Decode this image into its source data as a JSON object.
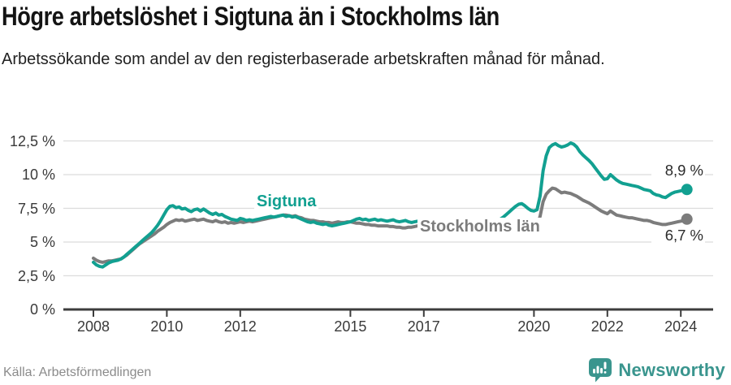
{
  "header": {
    "title": "Högre arbetslöshet i Sigtuna än i Stockholms län",
    "subtitle": "Arbetssökande som andel av den registerbaserade arbetskraften månad för månad."
  },
  "footer": {
    "source": "Källa: Arbetsförmedlingen",
    "brand": "Newsworthy"
  },
  "colors": {
    "sigtuna": "#12A091",
    "stockholm": "#7C7C7C",
    "grid": "#DCDCDC",
    "axis": "#3C3C3C",
    "logo": "#3A958E"
  },
  "chart_data": {
    "type": "line",
    "title": "Högre arbetslöshet i Sigtuna än i Stockholms län",
    "subtitle": "Arbetssökande som andel av den registerbaserade arbetskraften månad för månad.",
    "x_unit": "month",
    "x_start": "2008-01",
    "x_end": "2024-03",
    "x_tick_years": [
      2008,
      2010,
      2012,
      2015,
      2017,
      2020,
      2022,
      2024
    ],
    "y_ticks": [
      {
        "value": 0,
        "label": "0 %"
      },
      {
        "value": 2.5,
        "label": "2,5 %"
      },
      {
        "value": 5,
        "label": "5 %"
      },
      {
        "value": 7.5,
        "label": "7,5 %"
      },
      {
        "value": 10,
        "label": "10 %"
      },
      {
        "value": 12.5,
        "label": "12,5 %"
      }
    ],
    "ylim": [
      0,
      13
    ],
    "grid": true,
    "legend_position": "inline-annotations",
    "series": [
      {
        "name": "Sigtuna",
        "color": "#12A091",
        "end_label": "8,9 %",
        "end_value": 8.9,
        "values": [
          3.5,
          3.3,
          3.2,
          3.15,
          3.3,
          3.45,
          3.55,
          3.6,
          3.65,
          3.75,
          3.9,
          4.1,
          4.3,
          4.5,
          4.7,
          4.9,
          5.1,
          5.3,
          5.5,
          5.7,
          5.95,
          6.25,
          6.6,
          7.0,
          7.4,
          7.65,
          7.7,
          7.55,
          7.6,
          7.45,
          7.5,
          7.35,
          7.25,
          7.4,
          7.45,
          7.3,
          7.45,
          7.3,
          7.15,
          7.05,
          7.15,
          7.0,
          7.05,
          6.9,
          6.8,
          6.7,
          6.65,
          6.6,
          6.75,
          6.7,
          6.6,
          6.65,
          6.6,
          6.65,
          6.7,
          6.75,
          6.8,
          6.85,
          6.9,
          6.85,
          6.9,
          6.95,
          7.0,
          6.9,
          6.95,
          6.85,
          6.9,
          6.8,
          6.7,
          6.6,
          6.5,
          6.45,
          6.5,
          6.4,
          6.35,
          6.3,
          6.35,
          6.25,
          6.2,
          6.25,
          6.3,
          6.35,
          6.4,
          6.45,
          6.5,
          6.6,
          6.7,
          6.75,
          6.65,
          6.7,
          6.6,
          6.65,
          6.7,
          6.6,
          6.65,
          6.6,
          6.55,
          6.6,
          6.65,
          6.55,
          6.5,
          6.55,
          6.6,
          6.5,
          6.45,
          6.5,
          6.55,
          6.5,
          6.45,
          6.5,
          6.55,
          6.45,
          6.4,
          6.45,
          6.5,
          6.45,
          6.4,
          6.45,
          6.5,
          6.45,
          6.4,
          6.45,
          6.5,
          6.45,
          6.5,
          6.45,
          6.5,
          6.55,
          6.5,
          6.55,
          6.6,
          6.6,
          6.65,
          6.7,
          6.85,
          7.05,
          7.25,
          7.45,
          7.65,
          7.8,
          7.85,
          7.7,
          7.5,
          7.35,
          7.3,
          7.4,
          8.4,
          10.3,
          11.4,
          12.0,
          12.2,
          12.3,
          12.15,
          12.05,
          12.1,
          12.2,
          12.35,
          12.25,
          12.05,
          11.7,
          11.45,
          11.25,
          11.05,
          10.8,
          10.5,
          10.2,
          9.9,
          9.65,
          9.7,
          10.0,
          9.8,
          9.6,
          9.45,
          9.35,
          9.3,
          9.25,
          9.2,
          9.15,
          9.1,
          9.0,
          8.9,
          8.85,
          8.8,
          8.6,
          8.5,
          8.45,
          8.35,
          8.3,
          8.45,
          8.6,
          8.7,
          8.75,
          8.8,
          8.85,
          8.9
        ]
      },
      {
        "name": "Stockholms län",
        "color": "#7C7C7C",
        "end_label": "6,7 %",
        "end_value": 6.7,
        "values": [
          3.8,
          3.65,
          3.55,
          3.5,
          3.55,
          3.6,
          3.6,
          3.65,
          3.7,
          3.75,
          3.9,
          4.05,
          4.25,
          4.45,
          4.65,
          4.85,
          5.0,
          5.15,
          5.3,
          5.45,
          5.6,
          5.8,
          5.95,
          6.1,
          6.3,
          6.45,
          6.55,
          6.65,
          6.6,
          6.65,
          6.55,
          6.6,
          6.65,
          6.7,
          6.6,
          6.65,
          6.7,
          6.6,
          6.55,
          6.5,
          6.6,
          6.5,
          6.45,
          6.5,
          6.4,
          6.45,
          6.4,
          6.45,
          6.5,
          6.45,
          6.5,
          6.55,
          6.5,
          6.55,
          6.6,
          6.65,
          6.7,
          6.75,
          6.8,
          6.85,
          6.9,
          6.95,
          7.0,
          7.0,
          6.95,
          6.9,
          6.95,
          6.85,
          6.8,
          6.7,
          6.65,
          6.6,
          6.6,
          6.55,
          6.5,
          6.5,
          6.45,
          6.45,
          6.4,
          6.45,
          6.5,
          6.45,
          6.45,
          6.5,
          6.5,
          6.45,
          6.4,
          6.4,
          6.35,
          6.3,
          6.3,
          6.25,
          6.25,
          6.2,
          6.2,
          6.2,
          6.2,
          6.15,
          6.15,
          6.1,
          6.1,
          6.05,
          6.05,
          6.1,
          6.1,
          6.15,
          6.2,
          6.2,
          6.15,
          6.1,
          6.1,
          6.1,
          6.05,
          6.1,
          6.1,
          6.15,
          6.15,
          6.1,
          6.15,
          6.15,
          6.1,
          6.15,
          6.15,
          6.1,
          6.15,
          6.15,
          6.2,
          6.2,
          6.15,
          6.2,
          6.2,
          6.25,
          6.2,
          6.25,
          6.3,
          6.3,
          6.35,
          6.3,
          6.3,
          6.25,
          6.3,
          6.25,
          6.2,
          6.15,
          6.2,
          6.25,
          6.9,
          8.0,
          8.55,
          8.8,
          9.0,
          8.95,
          8.8,
          8.65,
          8.7,
          8.65,
          8.6,
          8.5,
          8.4,
          8.25,
          8.1,
          8.0,
          7.9,
          7.75,
          7.6,
          7.45,
          7.3,
          7.2,
          7.1,
          7.3,
          7.15,
          7.0,
          6.95,
          6.9,
          6.85,
          6.8,
          6.8,
          6.75,
          6.7,
          6.65,
          6.6,
          6.6,
          6.55,
          6.45,
          6.4,
          6.35,
          6.3,
          6.3,
          6.35,
          6.4,
          6.45,
          6.5,
          6.55,
          6.6,
          6.7
        ]
      }
    ]
  }
}
